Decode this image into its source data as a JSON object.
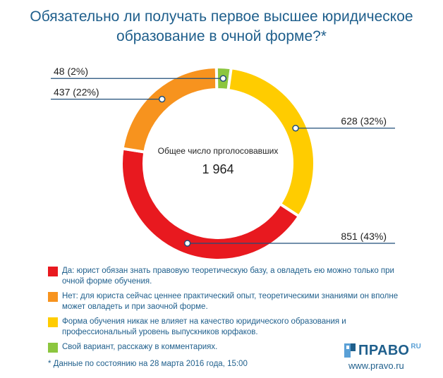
{
  "title_lines": [
    "Обязательно ли получать первое высшее юридическое",
    "образование в очной форме?*"
  ],
  "chart_data": {
    "type": "pie",
    "variant": "donut",
    "center_label": "Общее число прголосовавших",
    "center_value": "1 964",
    "slices": [
      {
        "label": "Да: юрист обязан знать правовую теоретическую базу, а овладеть ею можно только при очной форме обучения.",
        "count": 851,
        "percent": 43,
        "display": "851 (43%)",
        "color": "#e8191f"
      },
      {
        "label": "Нет: для юриста сейчас ценнее практический опыт, теоретическими знаниями он вполне может овладеть и при заочной форме.",
        "count": 437,
        "percent": 22,
        "display": "437 (22%)",
        "color": "#f7931e"
      },
      {
        "label": "Свой вариант, расскажу в комментариях.",
        "count": 48,
        "percent": 2,
        "display": "48 (2%)",
        "color": "#8cc63f"
      },
      {
        "label": "Форма обучения никак не влияет на качество юридического образования и профессиональный уровень выпускников юрфаков.",
        "count": 628,
        "percent": 32,
        "display": "628 (32%)",
        "color": "#ffcc00"
      }
    ]
  },
  "legend": [
    {
      "text": "Да: юрист обязан знать правовую теоретическую базу, а овладеть ею можно только при очной форме обучения.",
      "color": "#e8191f"
    },
    {
      "text": "Нет: для юриста сейчас ценнее практический опыт, теоретическими знаниями он вполне может овладеть и при заочной форме.",
      "color": "#f7931e"
    },
    {
      "text": "Форма обучения никак не влияет на качество юридического образования и профессиональный уровень выпускников юрфаков.",
      "color": "#ffcc00"
    },
    {
      "text": "Свой вариант, расскажу в комментариях.",
      "color": "#8cc63f"
    }
  ],
  "footnote": "* Данные по состоянию на 28 марта 2016 года, 15:00",
  "brand": {
    "name": "ПРАВО",
    "suffix": "RU",
    "url": "www.pravo.ru"
  },
  "colors": {
    "text": "#1f5f8c",
    "leader": "#1f4e79"
  }
}
